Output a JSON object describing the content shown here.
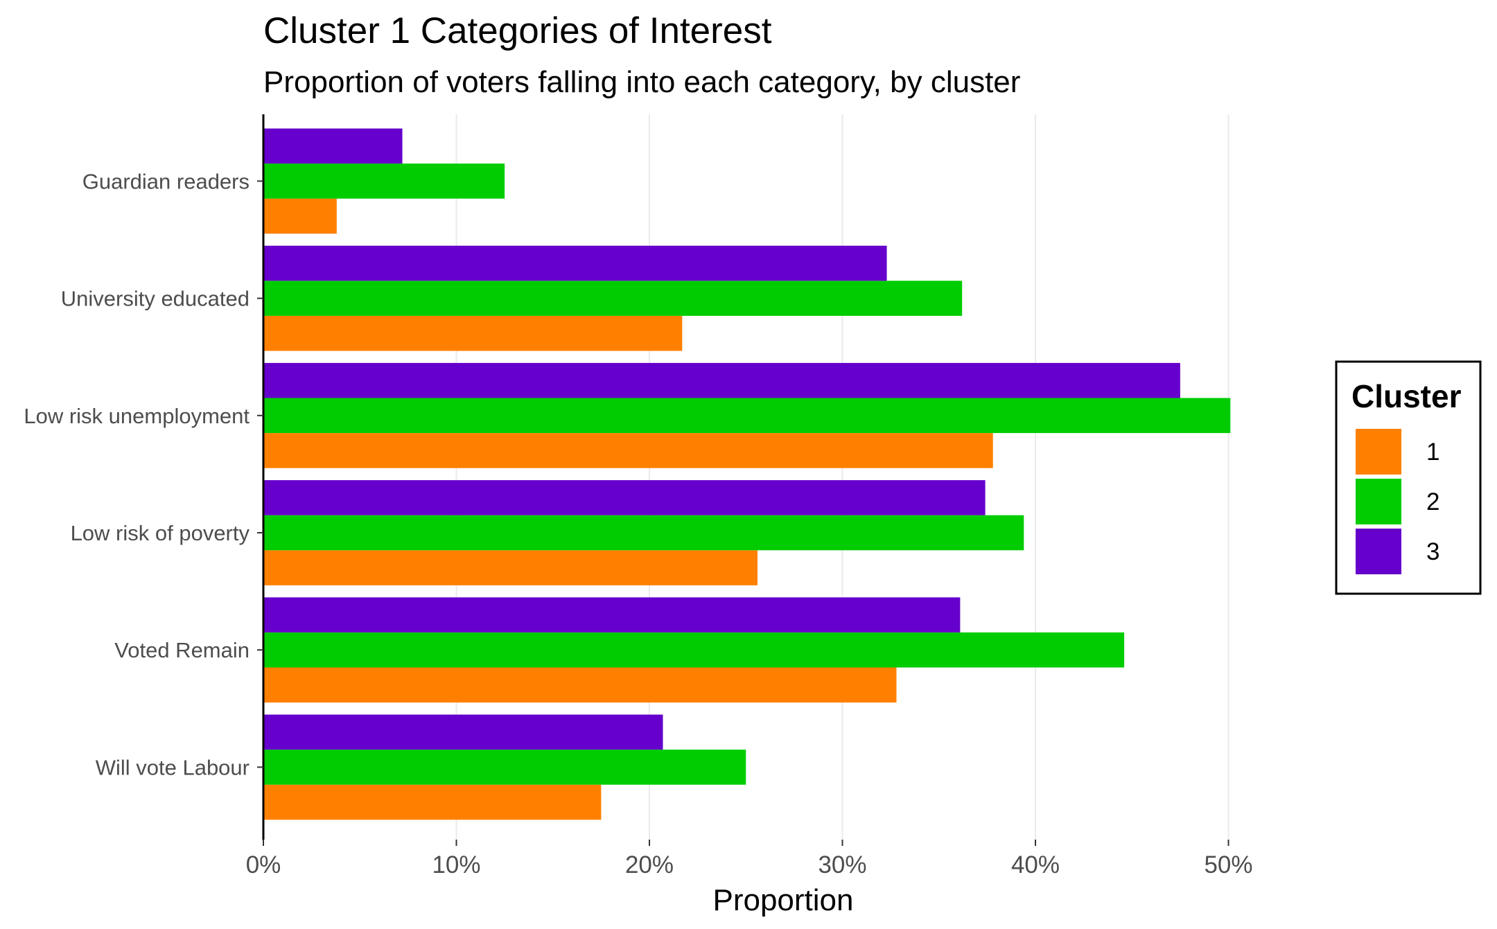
{
  "chart_data": {
    "type": "bar",
    "orientation": "horizontal",
    "title": "Cluster 1 Categories of Interest",
    "subtitle": "Proportion of voters falling into each category, by cluster",
    "xlabel": "Proportion",
    "ylabel": "",
    "xlim": [
      0,
      0.55
    ],
    "x_ticks": [
      0,
      0.1,
      0.2,
      0.3,
      0.4,
      0.5
    ],
    "x_tick_labels": [
      "0%",
      "10%",
      "20%",
      "30%",
      "40%",
      "50%"
    ],
    "grid": true,
    "legend": {
      "title": "Cluster",
      "position": "right"
    },
    "categories": [
      "Guardian readers",
      "University educated",
      "Low risk unemployment",
      "Low risk of poverty",
      "Voted Remain",
      "Will vote Labour"
    ],
    "series": [
      {
        "name": "1",
        "color": "#ff8000",
        "values": [
          0.038,
          0.217,
          0.378,
          0.256,
          0.328,
          0.175
        ]
      },
      {
        "name": "2",
        "color": "#00cc00",
        "values": [
          0.125,
          0.362,
          0.501,
          0.394,
          0.446,
          0.25
        ]
      },
      {
        "name": "3",
        "color": "#6600cc",
        "values": [
          0.072,
          0.323,
          0.475,
          0.374,
          0.361,
          0.207
        ]
      }
    ]
  }
}
